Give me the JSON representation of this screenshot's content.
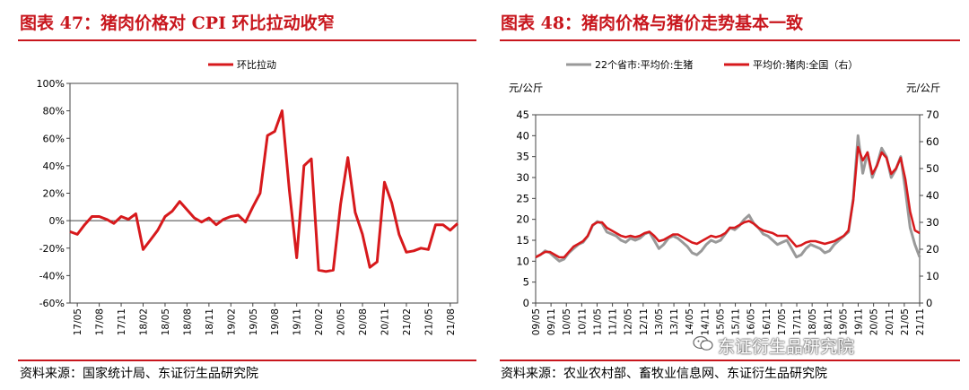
{
  "left": {
    "title": "图表 47：猪肉价格对 CPI 环比拉动收窄",
    "source": "资料来源：国家统计局、东证衍生品研究院"
  },
  "right": {
    "title": "图表 48：猪肉价格与猪价走势基本一致",
    "source": "资料来源：农业农村部、畜牧业信息网、东证衍生品研究院"
  },
  "watermark": "东证衍生品研究院",
  "colors": {
    "title_red": "#c8161d",
    "series_red": "#d7191c",
    "series_gray": "#999999"
  },
  "chart_data": [
    {
      "type": "line",
      "title": "",
      "legend": [
        "环比拉动"
      ],
      "legend_position": "top",
      "y_unit": "%",
      "ylim": [
        -60,
        100
      ],
      "y_ticks": [
        "100%",
        "80%",
        "60%",
        "40%",
        "20%",
        "0%",
        "-20%",
        "-40%",
        "-60%"
      ],
      "x_ticks": [
        "17/05",
        "17/08",
        "17/11",
        "18/02",
        "18/05",
        "18/08",
        "18/11",
        "19/02",
        "19/05",
        "19/08",
        "19/11",
        "20/02",
        "20/05",
        "20/08",
        "20/11",
        "21/02",
        "21/05",
        "21/08"
      ],
      "x_start": "2017-04",
      "series": [
        {
          "name": "环比拉动",
          "values": [
            -8,
            -10,
            -3,
            3,
            3,
            1,
            -2,
            3,
            1,
            5,
            -21,
            -14,
            -7,
            3,
            7,
            14,
            8,
            2,
            -1,
            2,
            -3,
            1,
            3,
            4,
            -1,
            10,
            20,
            62,
            65,
            80,
            22,
            -27,
            40,
            45,
            -36,
            -37,
            -36,
            12,
            46,
            6,
            -10,
            -34,
            -30,
            28,
            13,
            -10,
            -23,
            -22,
            -20,
            -21,
            -3,
            -3,
            -7,
            -2
          ]
        }
      ]
    },
    {
      "type": "line",
      "title": "",
      "legend": [
        "22个省市:平均价:生猪",
        "平均价:猪肉:全国（右）"
      ],
      "legend_position": "top",
      "y_left_label": "元/公斤",
      "y_right_label": "元/公斤",
      "ylim_left": [
        0,
        45
      ],
      "ylim_right": [
        0,
        70
      ],
      "y_left_ticks": [
        45,
        40,
        35,
        30,
        25,
        20,
        15,
        10,
        5,
        0
      ],
      "y_right_ticks": [
        70,
        60,
        50,
        40,
        30,
        20,
        10,
        0
      ],
      "x_ticks": [
        "09/05",
        "09/11",
        "10/05",
        "10/11",
        "11/05",
        "11/11",
        "12/05",
        "12/11",
        "13/05",
        "13/11",
        "14/05",
        "14/11",
        "15/05",
        "15/11",
        "16/05",
        "16/11",
        "17/05",
        "17/11",
        "18/05",
        "18/11",
        "19/05",
        "19/11",
        "20/05",
        "20/11",
        "21/05",
        "21/11"
      ],
      "x_start": "2009-05",
      "series": [
        {
          "name": "22个省市:平均价:生猪",
          "axis": "left",
          "values": [
            11,
            11.5,
            12.5,
            12,
            11,
            10,
            10.5,
            12,
            13,
            14,
            14.5,
            16,
            18.5,
            19.5,
            19,
            17,
            16.5,
            16,
            15,
            14.5,
            15.5,
            15,
            15.5,
            16.5,
            17,
            15,
            13,
            14,
            15.5,
            16,
            15.5,
            14.5,
            13.5,
            12,
            11.5,
            12.5,
            14,
            15,
            14.5,
            15,
            16.5,
            18,
            17.5,
            18.5,
            20,
            21,
            19,
            18,
            16.5,
            16,
            15,
            14,
            14.5,
            15,
            13,
            11,
            11.5,
            13,
            14,
            13.5,
            13,
            12,
            12.5,
            14,
            15,
            16,
            17,
            25,
            40,
            31,
            36,
            30,
            33,
            37,
            35,
            30,
            32,
            35,
            27,
            18,
            14,
            11
          ]
        },
        {
          "name": "平均价:猪肉:全国（右）",
          "axis": "right",
          "values": [
            17,
            18,
            19,
            19,
            18,
            17,
            17,
            19,
            21,
            22,
            23,
            25,
            29,
            30,
            30,
            28,
            27,
            26,
            25,
            24.5,
            25,
            24.5,
            25,
            26,
            26.5,
            25,
            23,
            23.5,
            24.5,
            25.5,
            25.5,
            24.5,
            23.5,
            22.5,
            22,
            23,
            24,
            25,
            24.5,
            25,
            26,
            28,
            28,
            29,
            30,
            30.5,
            29.5,
            28,
            27,
            26.5,
            26,
            25,
            25,
            25,
            23,
            21,
            21.5,
            22.5,
            23,
            23,
            22.5,
            22,
            22.5,
            23,
            24,
            25,
            27,
            38,
            58,
            53,
            56,
            48,
            51,
            56,
            54,
            48,
            50,
            54,
            46,
            34,
            27,
            26
          ]
        }
      ]
    }
  ]
}
